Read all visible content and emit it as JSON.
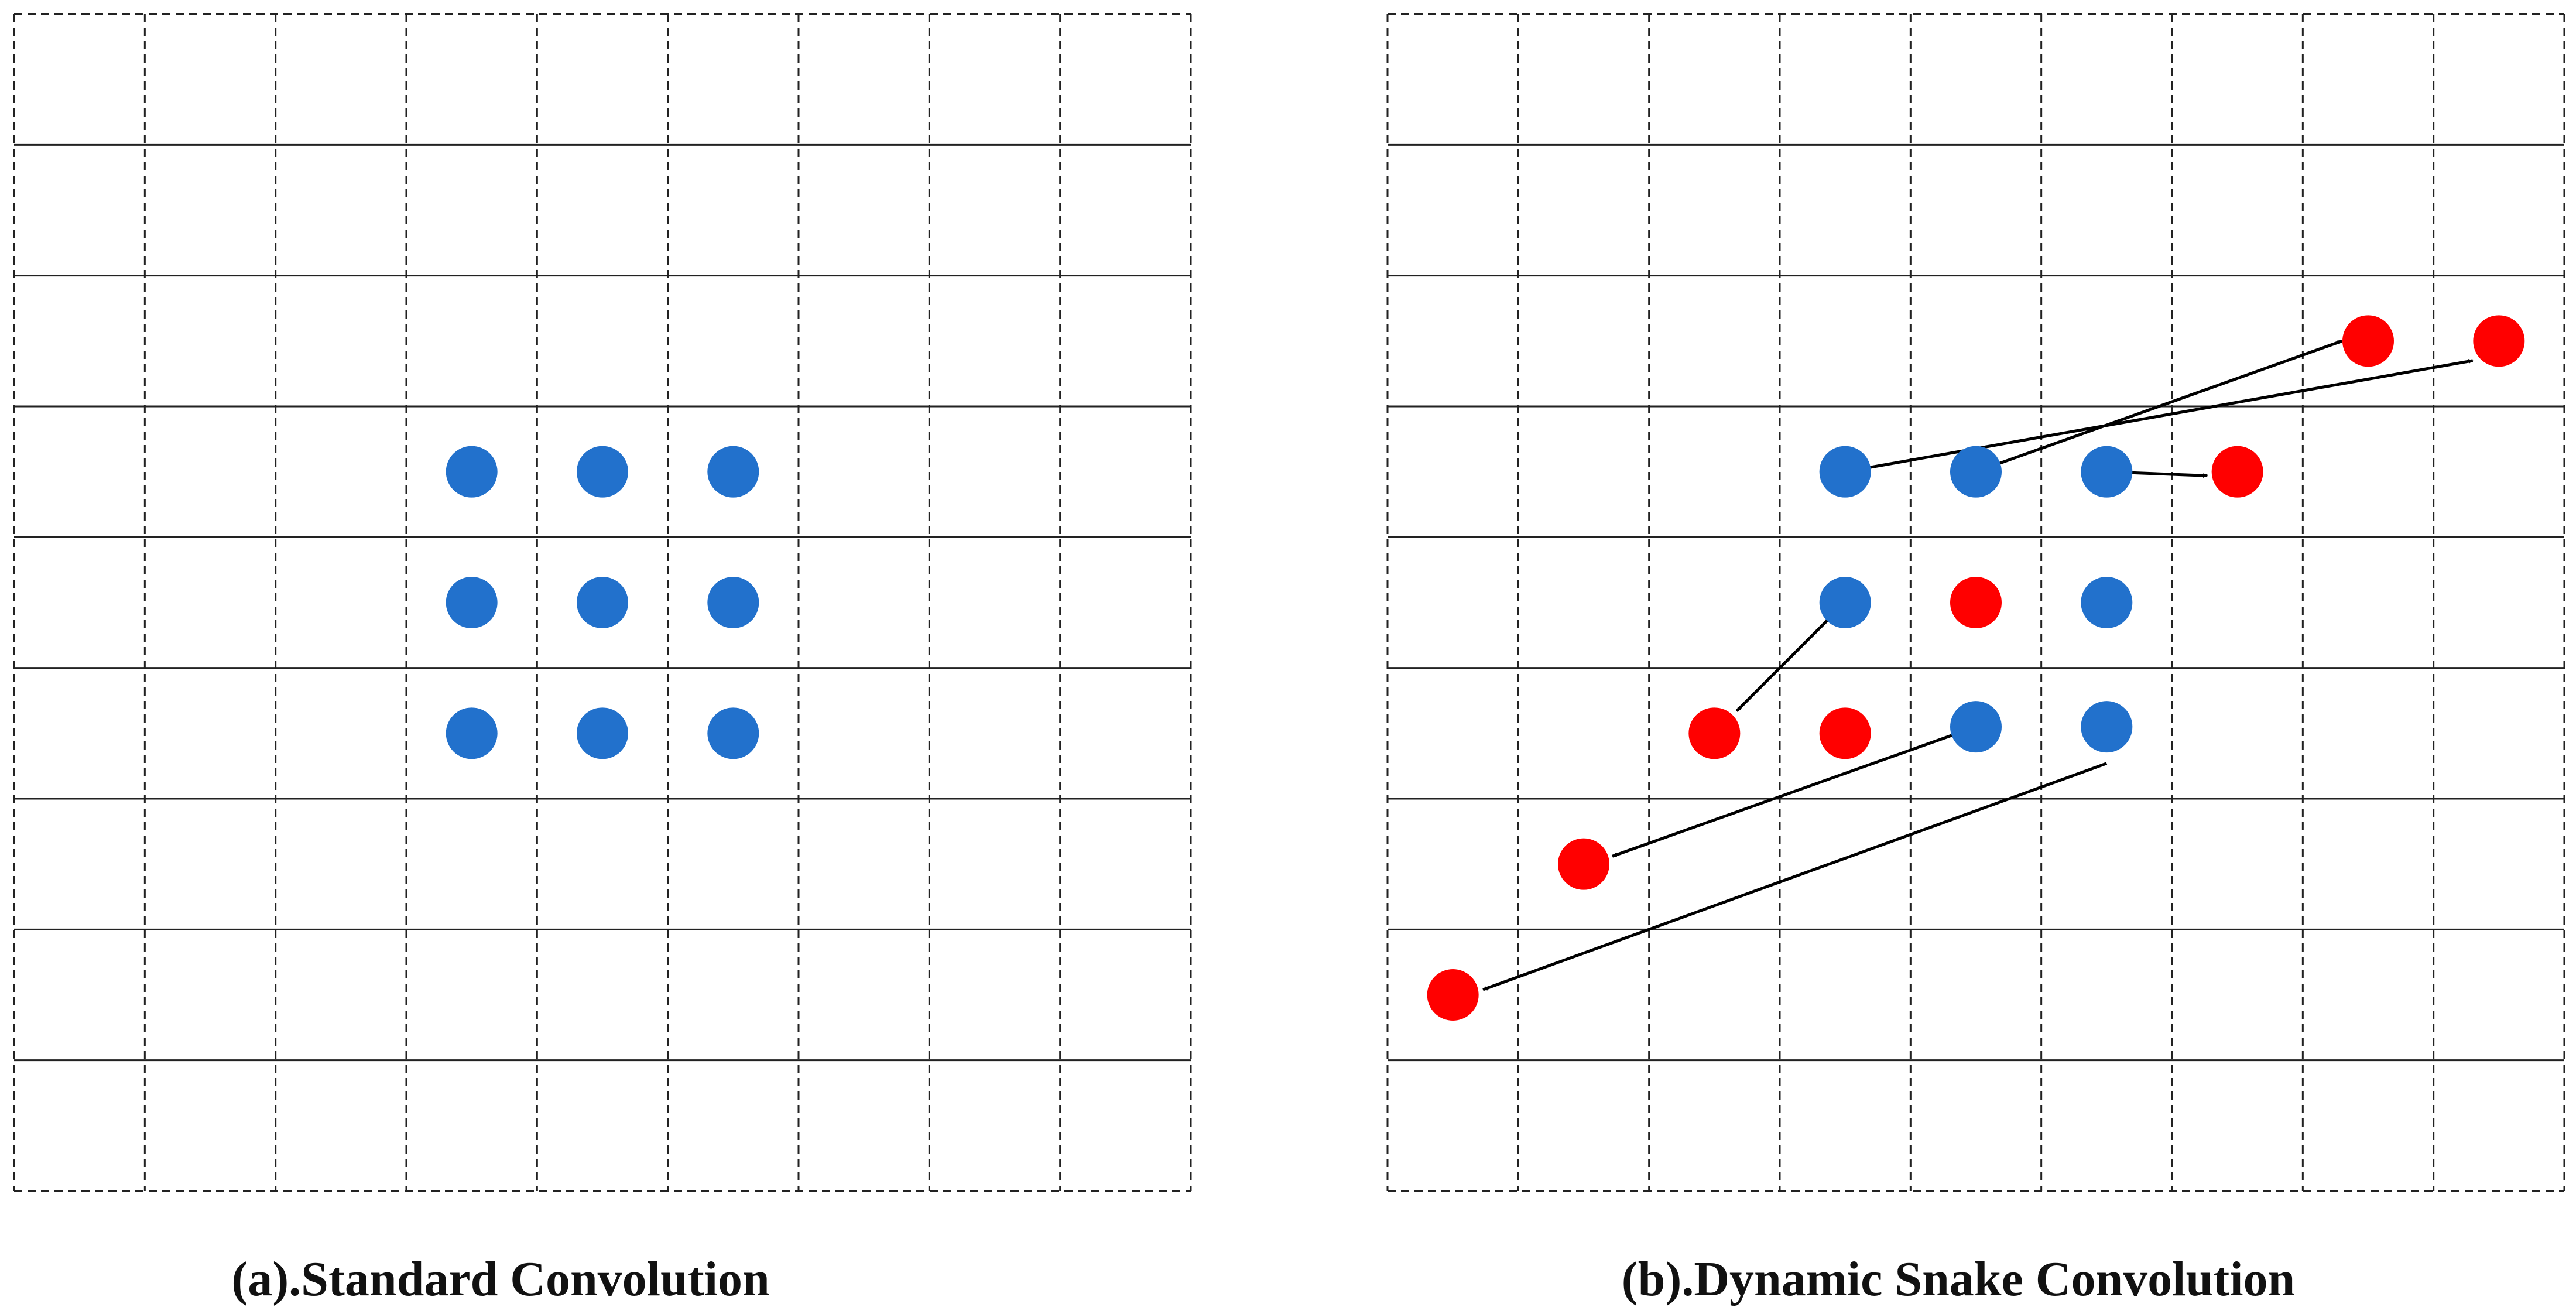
{
  "panels": [
    {
      "id": "a",
      "caption": "(a).Standard Convolution",
      "grid": {
        "rows": 9,
        "cols": 9
      },
      "points": [
        {
          "row": 3.5,
          "col": 3.5,
          "kind": "sample"
        },
        {
          "row": 3.5,
          "col": 4.5,
          "kind": "sample"
        },
        {
          "row": 3.5,
          "col": 5.5,
          "kind": "sample"
        },
        {
          "row": 4.5,
          "col": 3.5,
          "kind": "sample"
        },
        {
          "row": 4.5,
          "col": 4.5,
          "kind": "sample"
        },
        {
          "row": 4.5,
          "col": 5.5,
          "kind": "sample"
        },
        {
          "row": 5.5,
          "col": 3.5,
          "kind": "sample"
        },
        {
          "row": 5.5,
          "col": 4.5,
          "kind": "sample"
        },
        {
          "row": 5.5,
          "col": 5.5,
          "kind": "sample"
        }
      ],
      "arrows": []
    },
    {
      "id": "b",
      "caption": "(b).Dynamic Snake Convolution",
      "grid": {
        "rows": 9,
        "cols": 9
      },
      "points": [
        {
          "row": 3.5,
          "col": 3.5,
          "kind": "sample"
        },
        {
          "row": 3.5,
          "col": 4.5,
          "kind": "sample"
        },
        {
          "row": 3.5,
          "col": 5.5,
          "kind": "sample"
        },
        {
          "row": 4.5,
          "col": 3.5,
          "kind": "sample"
        },
        {
          "row": 4.5,
          "col": 5.5,
          "kind": "sample"
        },
        {
          "row": 5.45,
          "col": 4.5,
          "kind": "sample"
        },
        {
          "row": 5.45,
          "col": 5.5,
          "kind": "sample"
        },
        {
          "row": 2.5,
          "col": 7.5,
          "kind": "offset"
        },
        {
          "row": 2.5,
          "col": 8.5,
          "kind": "offset"
        },
        {
          "row": 3.5,
          "col": 6.5,
          "kind": "offset"
        },
        {
          "row": 4.5,
          "col": 4.5,
          "kind": "offset"
        },
        {
          "row": 5.5,
          "col": 2.5,
          "kind": "offset"
        },
        {
          "row": 5.5,
          "col": 3.5,
          "kind": "offset"
        },
        {
          "row": 6.5,
          "col": 1.5,
          "kind": "offset"
        },
        {
          "row": 7.5,
          "col": 0.5,
          "kind": "offset"
        }
      ],
      "arrows": [
        {
          "from": [
            3.5,
            3.5
          ],
          "to": [
            2.65,
            8.3
          ]
        },
        {
          "from": [
            3.5,
            4.5
          ],
          "to": [
            2.5,
            7.3
          ]
        },
        {
          "from": [
            3.5,
            5.5
          ],
          "to": [
            3.53,
            6.27
          ]
        },
        {
          "from": [
            4.5,
            3.5
          ],
          "to": [
            5.33,
            2.67
          ]
        },
        {
          "from": [
            5.45,
            4.5
          ],
          "to": [
            6.44,
            1.72
          ]
        },
        {
          "from": [
            5.73,
            5.5
          ],
          "to": [
            7.46,
            0.73
          ]
        }
      ]
    }
  ],
  "colors": {
    "sample": "#2271CC",
    "offset": "#FF0000",
    "grid": "#222222",
    "arrow": "#000000"
  }
}
